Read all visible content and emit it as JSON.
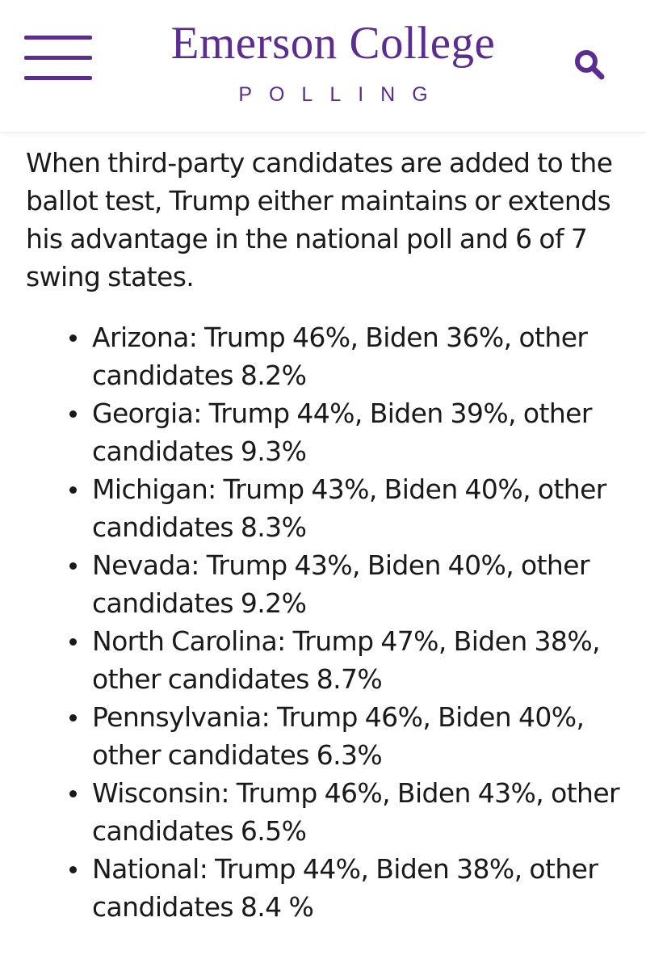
{
  "header": {
    "logo_title": "Emerson College",
    "logo_subtitle": "POLLING",
    "brand_color": "#5b2d91",
    "icons": {
      "menu": "hamburger-menu-icon",
      "search": "search-icon"
    }
  },
  "article": {
    "intro": "When third-party candidates are added to the ballot test, Trump either maintains or extends his advantage in the national poll and 6 of 7 swing states.",
    "results": [
      "Arizona: Trump 46%, Biden 36%, other candidates 8.2%",
      "Georgia: Trump 44%, Biden 39%, other candidates 9.3%",
      "Michigan: Trump 43%, Biden 40%, other candidates 8.3%",
      "Nevada: Trump 43%, Biden 40%, other candidates 9.2%",
      "North Carolina: Trump 47%, Biden 38%, other candidates 8.7%",
      "Pennsylvania: Trump 46%, Biden 40%, other candidates 6.3%",
      "Wisconsin: Trump 46%, Biden 43%, other candidates 6.5%",
      "National: Trump 44%, Biden 38%, other candidates 8.4 %"
    ]
  }
}
